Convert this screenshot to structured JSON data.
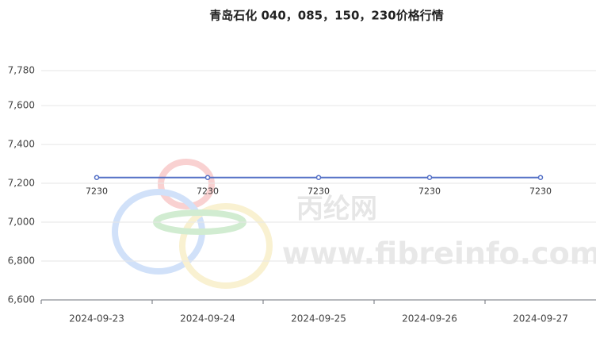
{
  "chart_data": {
    "type": "line",
    "title": "青岛石化 040，085，150，230价格行情",
    "watermark": [
      "丙纶网",
      "www.fibreinfo.com"
    ],
    "categories": [
      "2024-09-23",
      "2024-09-24",
      "2024-09-25",
      "2024-09-26",
      "2024-09-27"
    ],
    "series": [
      {
        "name": "青岛石化 040，085，150，230",
        "color": "#5470c6",
        "values": [
          7230,
          7230,
          7230,
          7230,
          7230
        ]
      }
    ],
    "ylim": [
      6600,
      7780
    ],
    "yticks": [
      {
        "value": 6600,
        "label": "6,600"
      },
      {
        "value": 6800,
        "label": "6,800"
      },
      {
        "value": 7000,
        "label": "7,000"
      },
      {
        "value": 7200,
        "label": "7,200"
      },
      {
        "value": 7400,
        "label": "7,400"
      },
      {
        "value": 7600,
        "label": "7,600"
      },
      {
        "value": 7780,
        "label": "7,780"
      }
    ],
    "grid": true
  }
}
